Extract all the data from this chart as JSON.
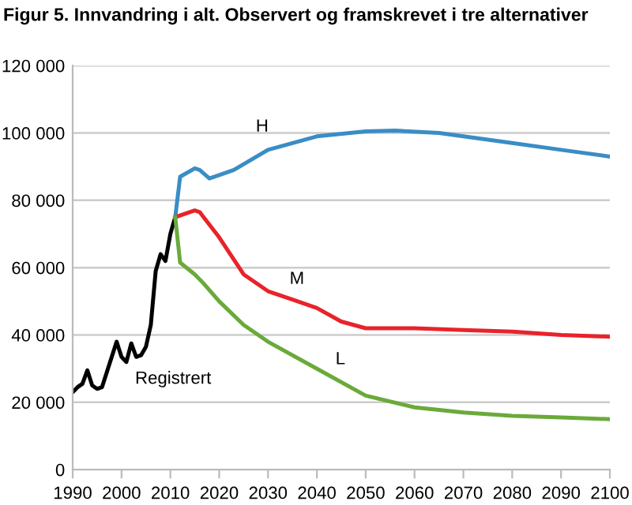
{
  "chart_data": {
    "type": "line",
    "title": "Figur 5. Innvandring i alt. Observert og framskrevet i tre alternativer",
    "series": [
      {
        "name": "Registrert",
        "color": "#000000",
        "x": [
          1990,
          1991,
          1992,
          1993,
          1994,
          1995,
          1996,
          1997,
          1998,
          1999,
          2000,
          2001,
          2002,
          2003,
          2004,
          2005,
          2006,
          2007,
          2008,
          2009,
          2010,
          2011
        ],
        "values": [
          23000,
          24500,
          25500,
          29500,
          25000,
          24000,
          24500,
          29000,
          33500,
          38000,
          33500,
          32000,
          37500,
          33500,
          34000,
          36500,
          43000,
          59000,
          64000,
          62000,
          70000,
          75000
        ]
      },
      {
        "name": "H",
        "color": "#3a8dc5",
        "x": [
          2011,
          2012,
          2015,
          2016,
          2018,
          2020,
          2023,
          2030,
          2040,
          2050,
          2056,
          2065,
          2080,
          2090,
          2100
        ],
        "values": [
          75000,
          87000,
          89500,
          89000,
          86500,
          87500,
          89000,
          95000,
          99000,
          100500,
          100700,
          100000,
          97000,
          95000,
          93000
        ]
      },
      {
        "name": "M",
        "color": "#e8232a",
        "x": [
          2011,
          2015,
          2016,
          2020,
          2025,
          2030,
          2035,
          2040,
          2045,
          2050,
          2060,
          2070,
          2080,
          2090,
          2100
        ],
        "values": [
          75000,
          77000,
          76500,
          69000,
          58000,
          53000,
          50500,
          48000,
          44000,
          42000,
          42000,
          41500,
          41000,
          40000,
          39500
        ]
      },
      {
        "name": "L",
        "color": "#6aaa3a",
        "x": [
          2011,
          2012,
          2015,
          2017,
          2020,
          2025,
          2030,
          2040,
          2050,
          2060,
          2070,
          2080,
          2090,
          2100
        ],
        "values": [
          75000,
          61500,
          58000,
          55000,
          50000,
          43000,
          38000,
          30000,
          22000,
          18500,
          17000,
          16000,
          15500,
          15000
        ]
      }
    ],
    "xlim": [
      1990,
      2100
    ],
    "xticks": [
      1990,
      2000,
      2010,
      2020,
      2030,
      2040,
      2050,
      2060,
      2070,
      2080,
      2090,
      2100
    ],
    "ylim": [
      0,
      120000
    ],
    "yticks": [
      {
        "value": 0,
        "label": "0"
      },
      {
        "value": 20000,
        "label": "20 000"
      },
      {
        "value": 40000,
        "label": "40 000"
      },
      {
        "value": 60000,
        "label": "60 000"
      },
      {
        "value": 80000,
        "label": "80 000"
      },
      {
        "value": 100000,
        "label": "100 000"
      },
      {
        "value": 120000,
        "label": "120 000"
      }
    ],
    "grid": "y",
    "marker": "none",
    "line_style": "solid"
  }
}
